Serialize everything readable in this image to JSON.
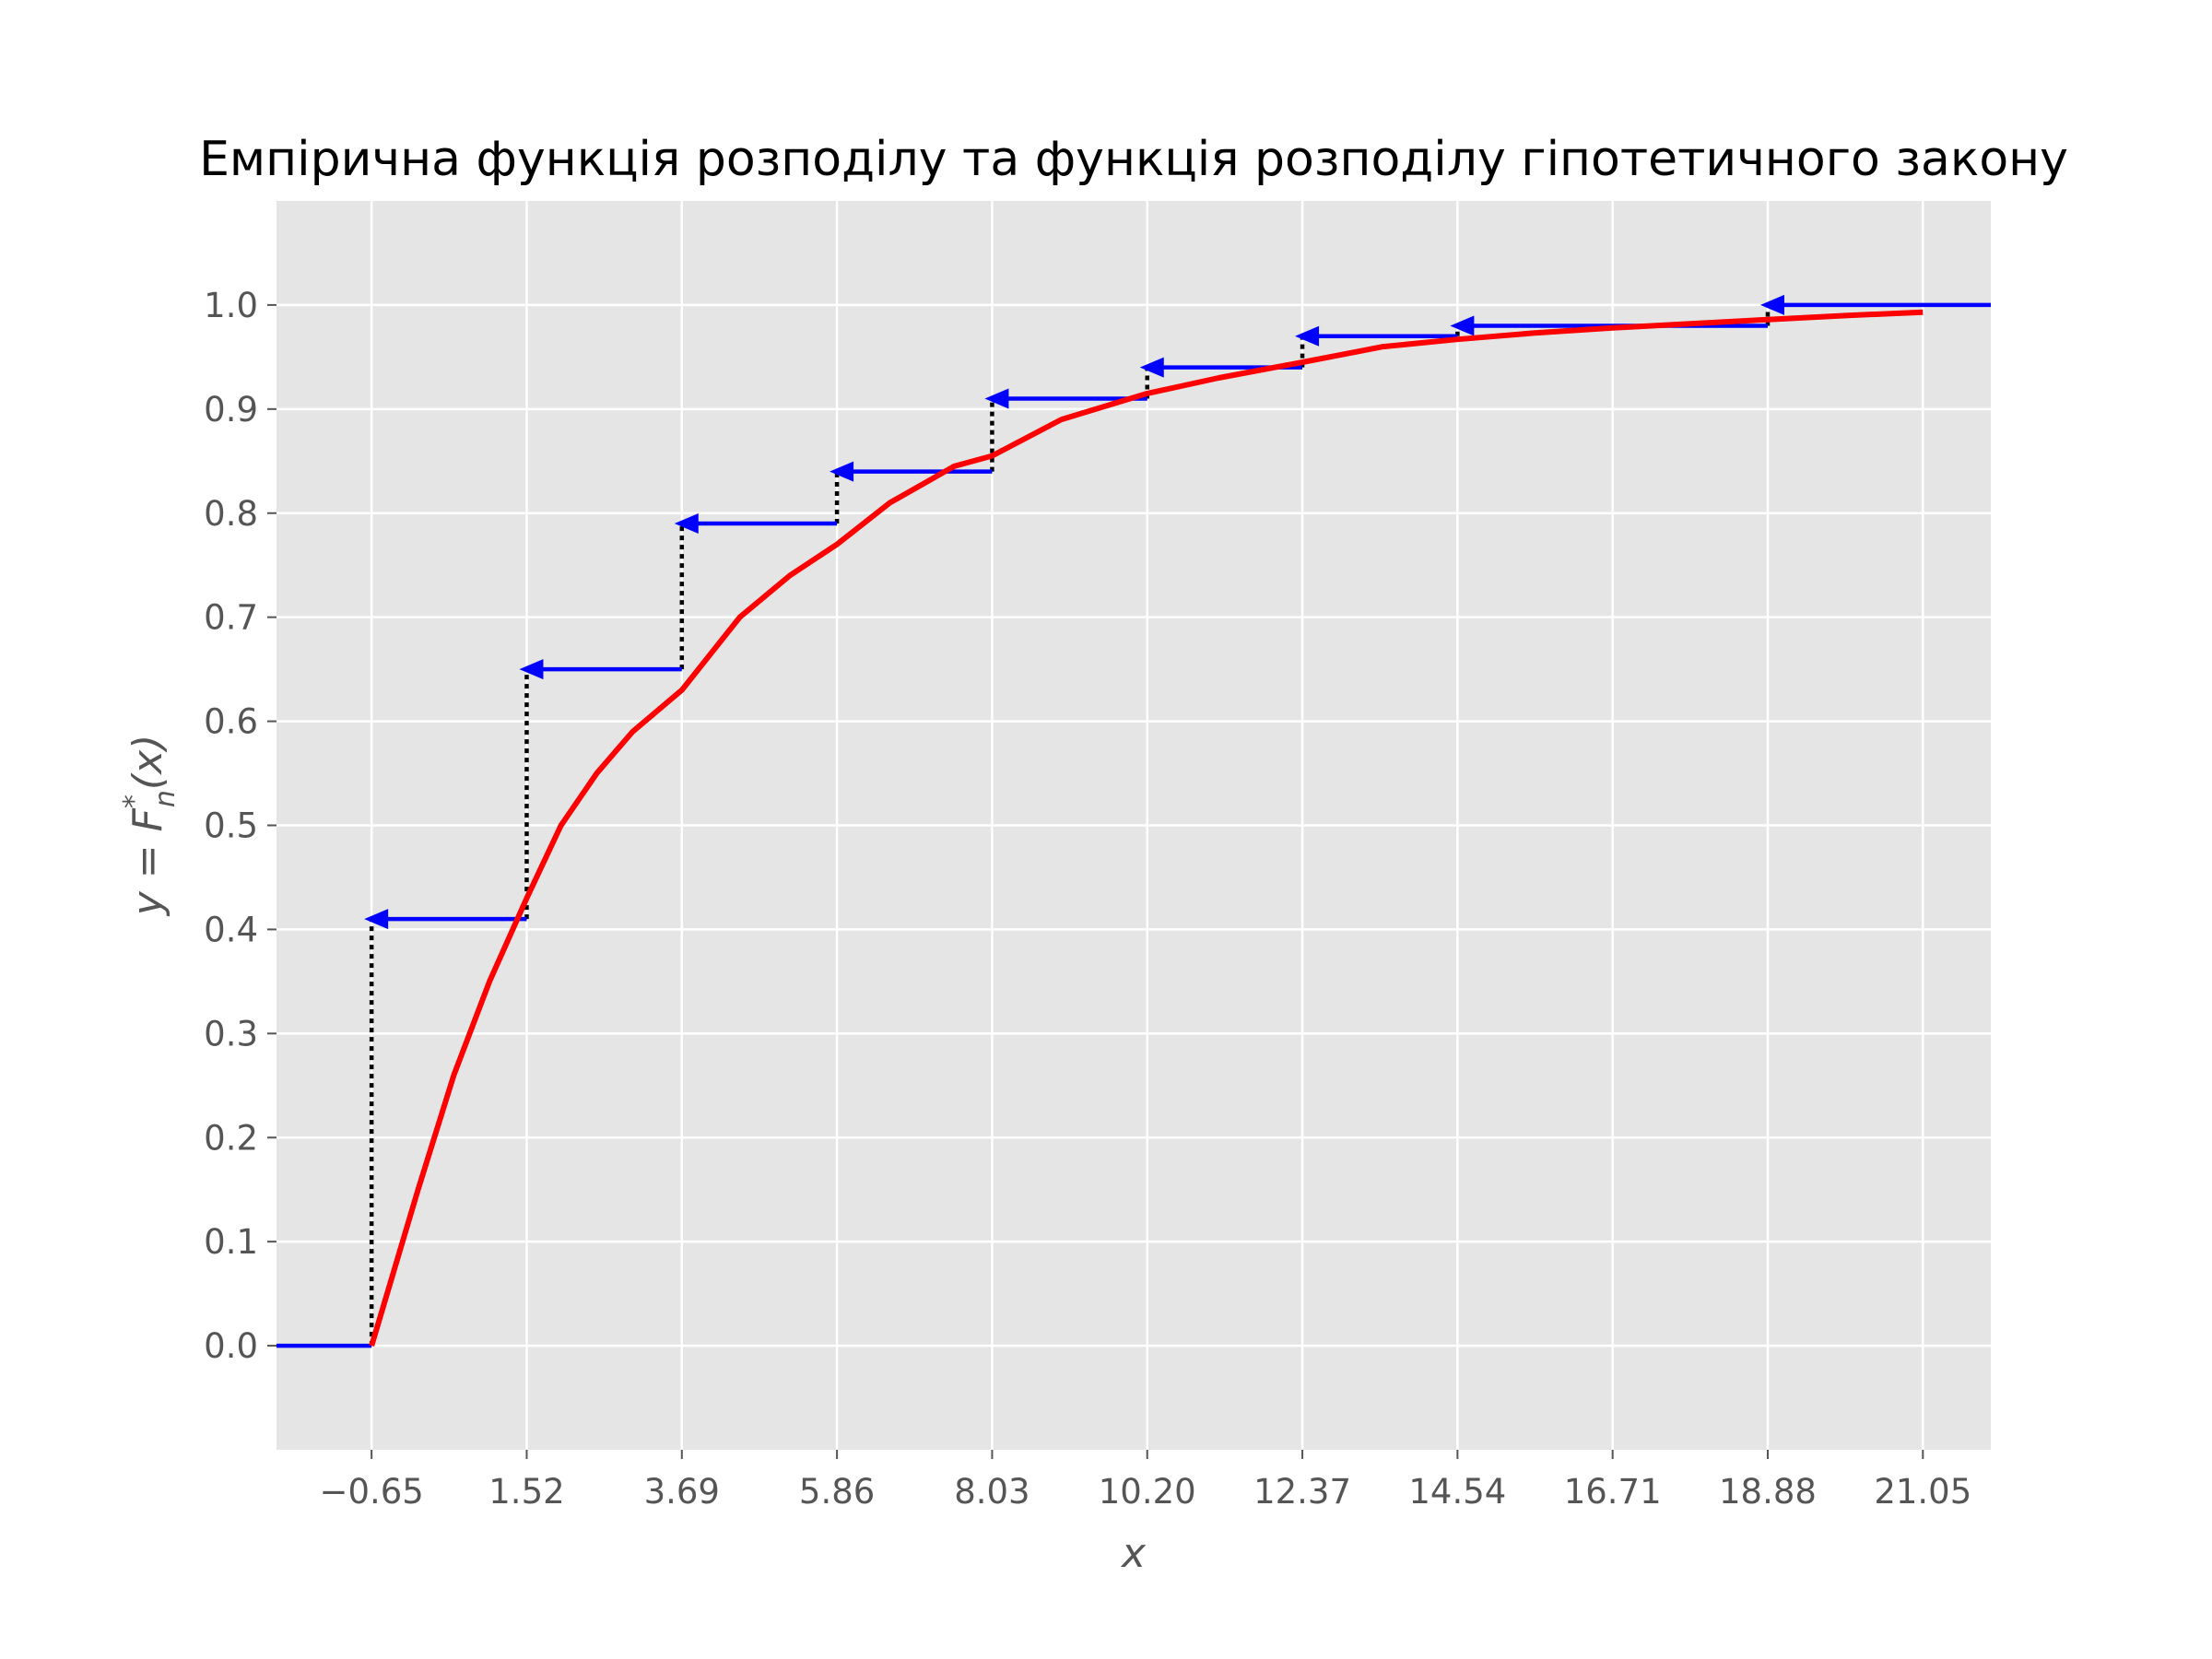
{
  "chart_data": {
    "type": "line",
    "title": "Емпірична функція розподілу та функція розподілу гіпотетичного закону",
    "xlabel": "x",
    "ylabel": "y = F*n(x)",
    "xticks": [
      "−0.65",
      "1.52",
      "3.69",
      "5.86",
      "8.03",
      "10.20",
      "12.37",
      "14.54",
      "16.71",
      "18.88",
      "21.05"
    ],
    "yticks": [
      "0.0",
      "0.1",
      "0.2",
      "0.3",
      "0.4",
      "0.5",
      "0.6",
      "0.7",
      "0.8",
      "0.9",
      "1.0"
    ],
    "xlim": [
      -1.98,
      22.0
    ],
    "ylim": [
      -0.1,
      1.1
    ],
    "grid": true,
    "series": [
      {
        "kind": "empirical_step",
        "color": "#0000ff",
        "steps": [
          {
            "x_from": -1.98,
            "x_to": -0.65,
            "y": 0.0
          },
          {
            "x_from": -0.65,
            "x_to": 1.52,
            "y": 0.41
          },
          {
            "x_from": 1.52,
            "x_to": 3.69,
            "y": 0.65
          },
          {
            "x_from": 3.69,
            "x_to": 5.86,
            "y": 0.79
          },
          {
            "x_from": 5.86,
            "x_to": 8.03,
            "y": 0.84
          },
          {
            "x_from": 8.03,
            "x_to": 10.2,
            "y": 0.91
          },
          {
            "x_from": 10.2,
            "x_to": 12.37,
            "y": 0.94
          },
          {
            "x_from": 12.37,
            "x_to": 14.54,
            "y": 0.97
          },
          {
            "x_from": 14.54,
            "x_to": 18.88,
            "y": 0.98
          },
          {
            "x_from": 18.88,
            "x_to": 22.0,
            "y": 1.0
          }
        ],
        "jump_color": "#000000"
      },
      {
        "kind": "hypothetical_cdf",
        "color": "#ff0000",
        "x": [
          -0.65,
          0.0,
          0.5,
          1.0,
          1.52,
          2.0,
          2.5,
          3.0,
          3.69,
          4.5,
          5.2,
          5.86,
          6.6,
          7.5,
          8.03,
          9.0,
          10.2,
          11.2,
          12.37,
          13.5,
          14.54,
          15.6,
          16.71,
          17.8,
          18.88,
          20.0,
          21.05
        ],
        "y": [
          0.0,
          0.15,
          0.26,
          0.35,
          0.43,
          0.5,
          0.55,
          0.59,
          0.63,
          0.7,
          0.74,
          0.77,
          0.81,
          0.845,
          0.855,
          0.89,
          0.915,
          0.93,
          0.945,
          0.96,
          0.967,
          0.973,
          0.978,
          0.982,
          0.986,
          0.99,
          0.993
        ]
      }
    ]
  }
}
